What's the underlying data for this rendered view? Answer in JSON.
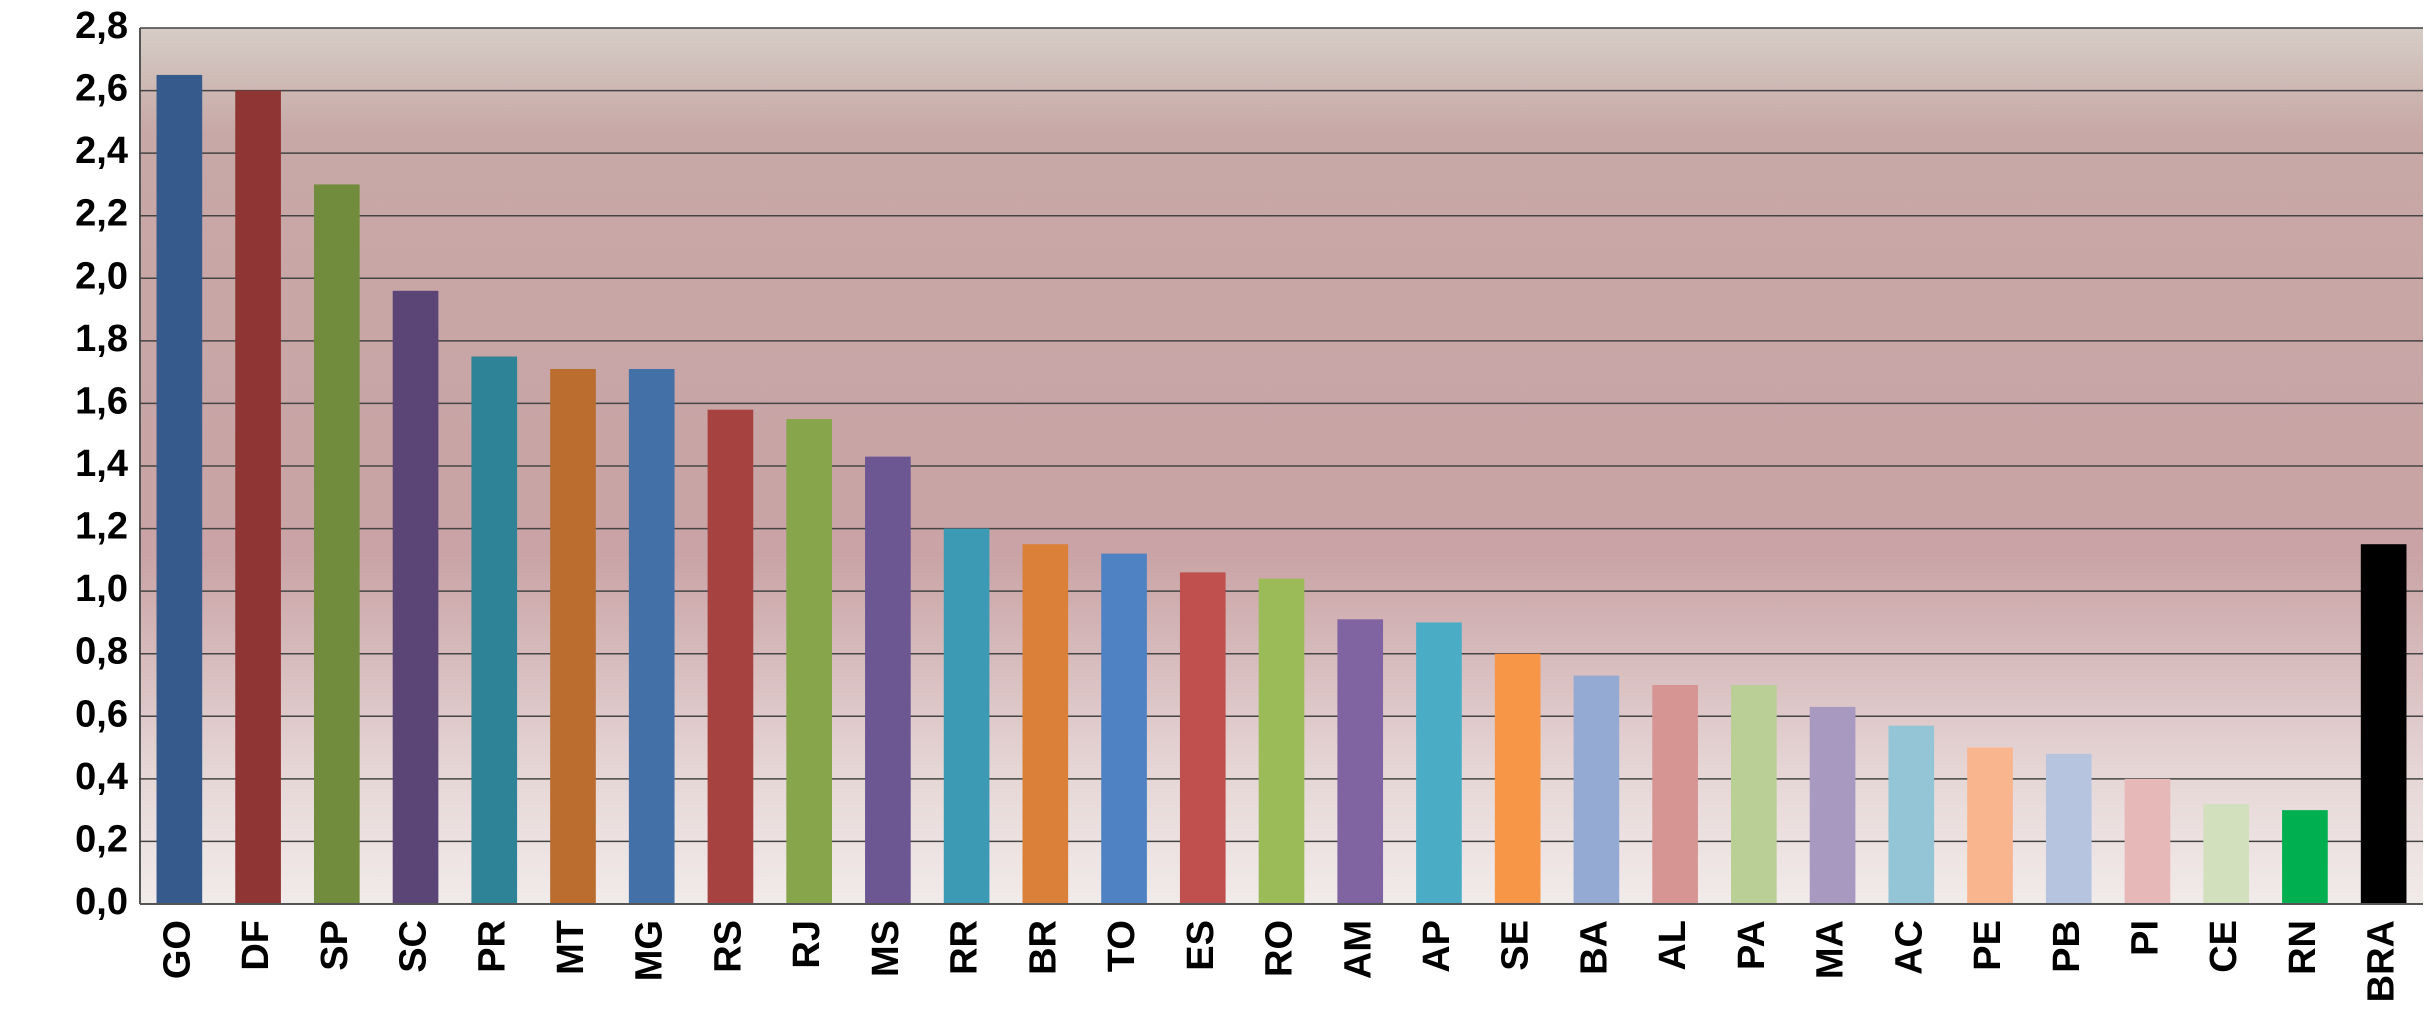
{
  "chart_data": {
    "type": "bar",
    "categories": [
      "GO",
      "DF",
      "SP",
      "SC",
      "PR",
      "MT",
      "MG",
      "RS",
      "RJ",
      "MS",
      "RR",
      "BR",
      "TO",
      "ES",
      "RO",
      "AM",
      "AP",
      "SE",
      "BA",
      "AL",
      "PA",
      "MA",
      "AC",
      "PE",
      "PB",
      "PI",
      "CE",
      "RN",
      "BRA"
    ],
    "values": [
      2.65,
      2.6,
      2.3,
      1.96,
      1.75,
      1.71,
      1.71,
      1.58,
      1.55,
      1.43,
      1.2,
      1.15,
      1.12,
      1.06,
      1.04,
      0.91,
      0.9,
      0.8,
      0.73,
      0.7,
      0.7,
      0.63,
      0.57,
      0.5,
      0.48,
      0.4,
      0.32,
      0.3,
      1.15
    ],
    "colors": [
      "#375a8c",
      "#8f3533",
      "#708c3c",
      "#5b4476",
      "#2e8397",
      "#ba6d2f",
      "#4371a7",
      "#a64340",
      "#87a54a",
      "#6c5793",
      "#3d9ab4",
      "#da8038",
      "#4f82c2",
      "#c0504d",
      "#9bbb59",
      "#8064a2",
      "#4bacc6",
      "#f79646",
      "#95aad3",
      "#d69593",
      "#b9cf96",
      "#a899c0",
      "#93c5d6",
      "#f9b58e",
      "#b7c4e0",
      "#e6b9b8",
      "#d3e0bd",
      "#00b050",
      "#000000"
    ],
    "ylim": [
      0,
      2.8
    ],
    "yticks": [
      {
        "value": 0,
        "label": "0,0"
      },
      {
        "value": 0.2,
        "label": "0,2"
      },
      {
        "value": 0.4,
        "label": "0,4"
      },
      {
        "value": 0.6,
        "label": "0,6"
      },
      {
        "value": 0.8,
        "label": "0,8"
      },
      {
        "value": 1.0,
        "label": "1,0"
      },
      {
        "value": 1.2,
        "label": "1,2"
      },
      {
        "value": 1.4,
        "label": "1,4"
      },
      {
        "value": 1.6,
        "label": "1,6"
      },
      {
        "value": 1.8,
        "label": "1,8"
      },
      {
        "value": 2.0,
        "label": "2,0"
      },
      {
        "value": 2.2,
        "label": "2,2"
      },
      {
        "value": 2.4,
        "label": "2,4"
      },
      {
        "value": 2.6,
        "label": "2,6"
      },
      {
        "value": 2.8,
        "label": "2,8"
      }
    ],
    "grid": true
  }
}
